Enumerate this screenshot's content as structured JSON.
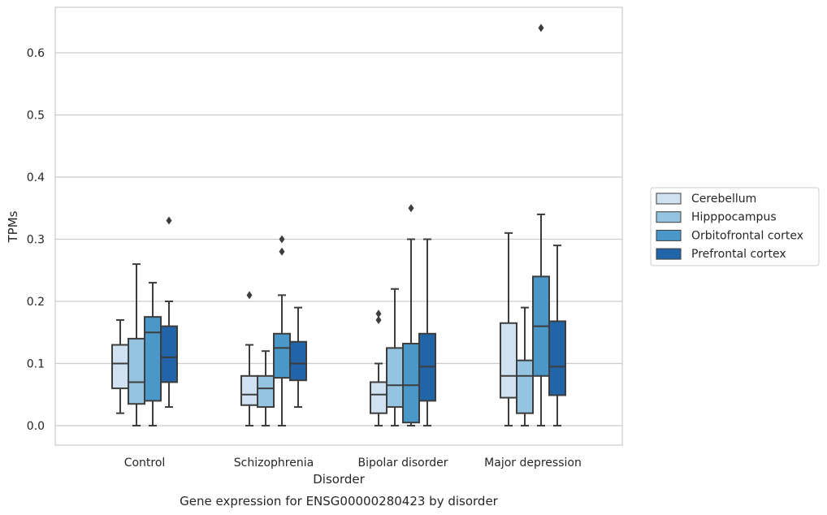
{
  "chart_data": {
    "type": "box",
    "title": "",
    "caption": "Gene expression for ENSG00000280423 by disorder",
    "xlabel": "Disorder",
    "ylabel": "TPMs",
    "ylim": [
      -0.031,
      0.675
    ],
    "yticks": [
      "0.0",
      "0.1",
      "0.2",
      "0.3",
      "0.4",
      "0.5",
      "0.6"
    ],
    "ytick_values": [
      0.0,
      0.1,
      0.2,
      0.3,
      0.4,
      0.5,
      0.6
    ],
    "grid": "horizontal",
    "legend_position": "right",
    "categories": [
      "Control",
      "Schizophrenia",
      "Bipolar disorder",
      "Major depression"
    ],
    "series": [
      {
        "name": "Cerebellum",
        "color": "#d0e1f2",
        "boxes": [
          {
            "whisker_low": 0.02,
            "q1": 0.06,
            "median": 0.1,
            "q3": 0.13,
            "whisker_high": 0.17,
            "outliers": []
          },
          {
            "whisker_low": 0.0,
            "q1": 0.033,
            "median": 0.05,
            "q3": 0.08,
            "whisker_high": 0.13,
            "outliers": [
              0.21
            ]
          },
          {
            "whisker_low": 0.0,
            "q1": 0.02,
            "median": 0.05,
            "q3": 0.07,
            "whisker_high": 0.1,
            "outliers": [
              0.17,
              0.18
            ]
          },
          {
            "whisker_low": 0.0,
            "q1": 0.045,
            "median": 0.08,
            "q3": 0.165,
            "whisker_high": 0.31,
            "outliers": []
          }
        ]
      },
      {
        "name": "Hipppocampus",
        "color": "#94c4df",
        "boxes": [
          {
            "whisker_low": 0.0,
            "q1": 0.035,
            "median": 0.07,
            "q3": 0.14,
            "whisker_high": 0.26,
            "outliers": []
          },
          {
            "whisker_low": 0.0,
            "q1": 0.03,
            "median": 0.06,
            "q3": 0.08,
            "whisker_high": 0.12,
            "outliers": []
          },
          {
            "whisker_low": 0.0,
            "q1": 0.03,
            "median": 0.065,
            "q3": 0.125,
            "whisker_high": 0.22,
            "outliers": []
          },
          {
            "whisker_low": 0.0,
            "q1": 0.02,
            "median": 0.08,
            "q3": 0.105,
            "whisker_high": 0.19,
            "outliers": []
          }
        ]
      },
      {
        "name": "Orbitofrontal cortex",
        "color": "#4a98c9",
        "boxes": [
          {
            "whisker_low": 0.0,
            "q1": 0.04,
            "median": 0.15,
            "q3": 0.175,
            "whisker_high": 0.23,
            "outliers": []
          },
          {
            "whisker_low": 0.0,
            "q1": 0.077,
            "median": 0.125,
            "q3": 0.148,
            "whisker_high": 0.21,
            "outliers": [
              0.28,
              0.3
            ]
          },
          {
            "whisker_low": 0.0,
            "q1": 0.005,
            "median": 0.065,
            "q3": 0.132,
            "whisker_high": 0.3,
            "outliers": [
              0.35
            ]
          },
          {
            "whisker_low": 0.0,
            "q1": 0.08,
            "median": 0.16,
            "q3": 0.24,
            "whisker_high": 0.34,
            "outliers": [
              0.64
            ]
          }
        ]
      },
      {
        "name": "Prefrontal cortex",
        "color": "#2264a8",
        "boxes": [
          {
            "whisker_low": 0.03,
            "q1": 0.07,
            "median": 0.11,
            "q3": 0.16,
            "whisker_high": 0.2,
            "outliers": [
              0.33
            ]
          },
          {
            "whisker_low": 0.03,
            "q1": 0.073,
            "median": 0.1,
            "q3": 0.135,
            "whisker_high": 0.19,
            "outliers": []
          },
          {
            "whisker_low": 0.0,
            "q1": 0.04,
            "median": 0.095,
            "q3": 0.148,
            "whisker_high": 0.3,
            "outliers": []
          },
          {
            "whisker_low": 0.0,
            "q1": 0.049,
            "median": 0.095,
            "q3": 0.168,
            "whisker_high": 0.29,
            "outliers": []
          }
        ]
      }
    ]
  }
}
